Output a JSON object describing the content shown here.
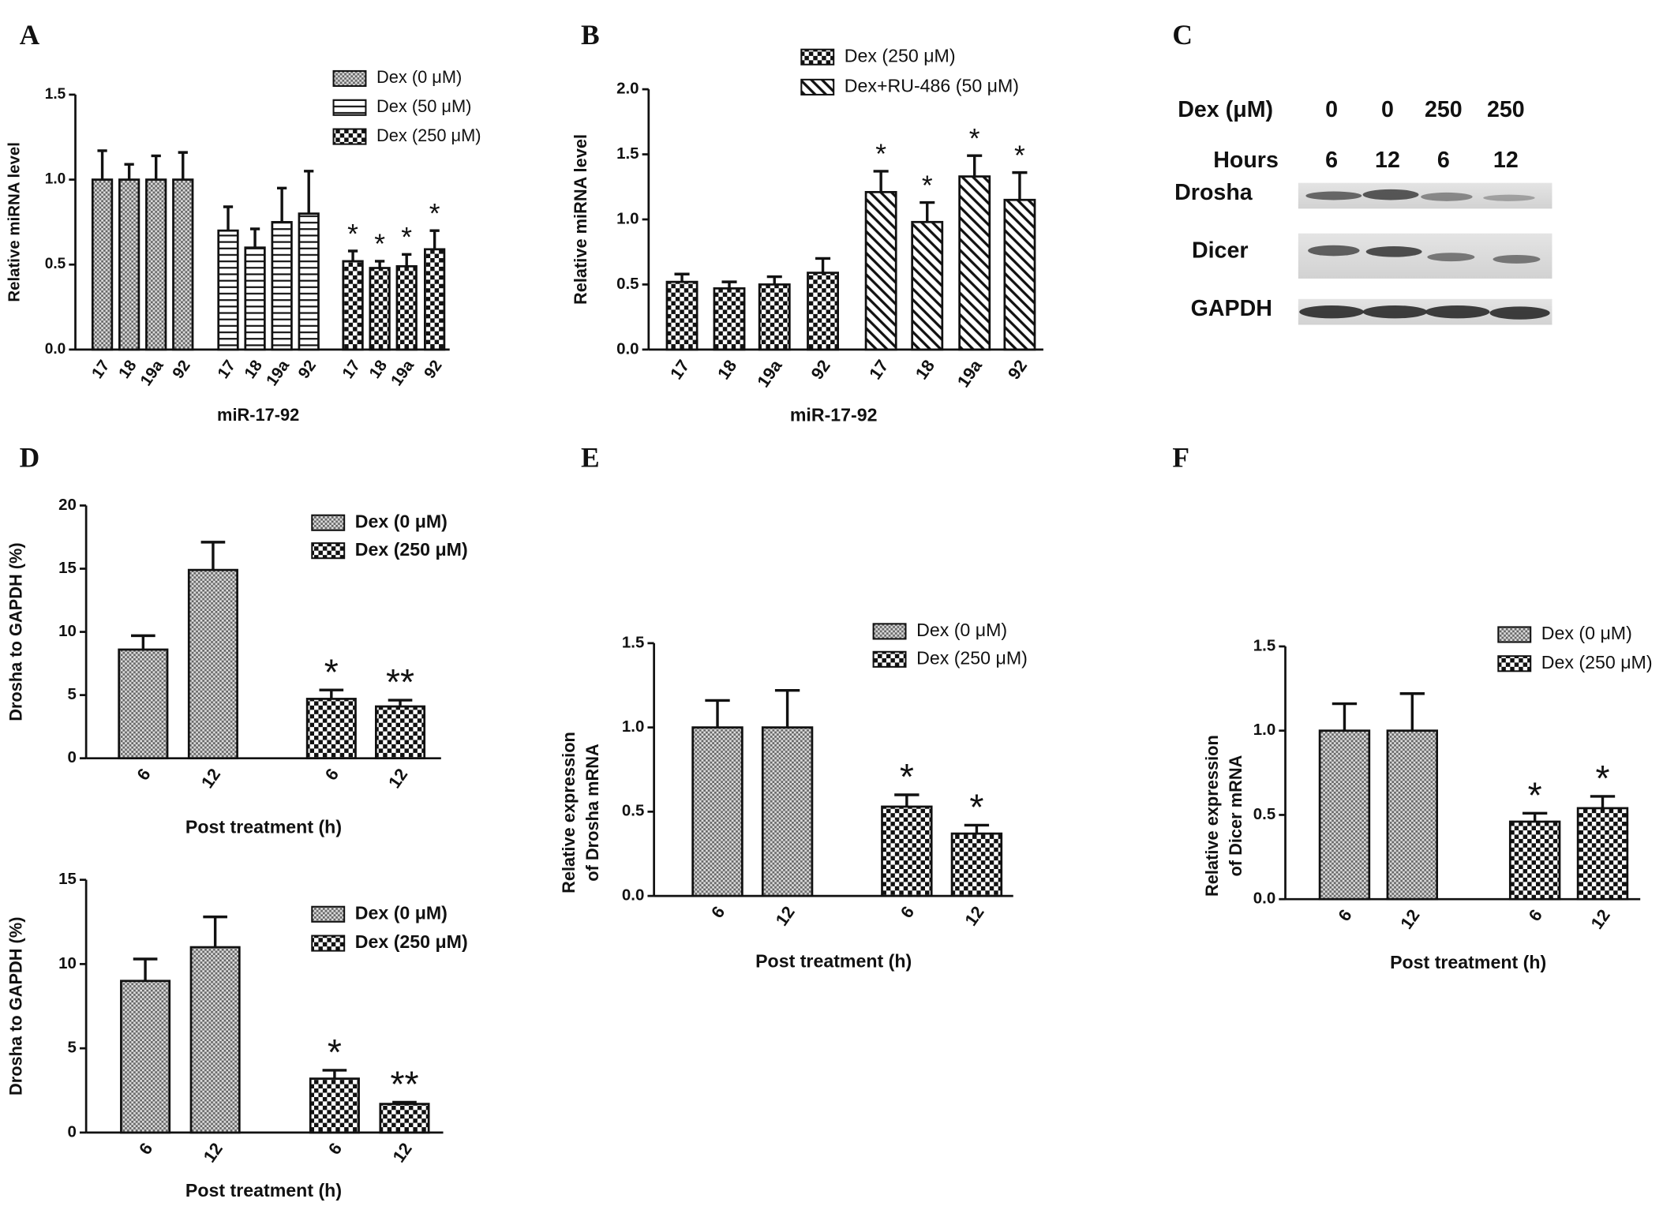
{
  "panel_labels": [
    "A",
    "B",
    "C",
    "D",
    "E",
    "F"
  ],
  "blot": {
    "dose_header": "Dex (μM)",
    "doses": [
      "0",
      "0",
      "250",
      "250"
    ],
    "time_header": "Hours",
    "times": [
      "6",
      "12",
      "6",
      "12"
    ],
    "bands": [
      "Drosha",
      "Dicer",
      "GAPDH"
    ]
  },
  "chart_data": [
    {
      "type": "bar",
      "xlabel": "miR-17-92",
      "ylabel": "Relative miRNA level",
      "categories": [
        "17",
        "18",
        "19a",
        "92"
      ],
      "ylim": [
        0,
        1.5
      ],
      "yticks": [
        {
          "value": 0,
          "label": "0.0"
        },
        {
          "value": 0.5,
          "label": "0.5"
        },
        {
          "value": 1.0,
          "label": "1.0"
        },
        {
          "value": 1.5,
          "label": "1.5"
        }
      ],
      "series": [
        {
          "name": "Dex (0 μM)",
          "pattern": "fine",
          "values": [
            1.0,
            1.0,
            1.0,
            1.0
          ],
          "errors": [
            0.17,
            0.09,
            0.14,
            0.16
          ]
        },
        {
          "name": "Dex (50 μM)",
          "pattern": "hlines",
          "values": [
            0.7,
            0.6,
            0.75,
            0.8
          ],
          "errors": [
            0.14,
            0.11,
            0.2,
            0.25
          ]
        },
        {
          "name": "Dex (250 μM)",
          "pattern": "checker",
          "values": [
            0.52,
            0.48,
            0.49,
            0.59
          ],
          "errors": [
            0.06,
            0.04,
            0.07,
            0.11
          ],
          "significance": [
            "*",
            "*",
            "*",
            "*"
          ]
        }
      ]
    },
    {
      "type": "bar",
      "xlabel": "miR-17-92",
      "ylabel": "Relative miRNA level",
      "categories": [
        "17",
        "18",
        "19a",
        "92"
      ],
      "ylim": [
        0,
        2.0
      ],
      "yticks": [
        {
          "value": 0,
          "label": "0.0"
        },
        {
          "value": 0.5,
          "label": "0.5"
        },
        {
          "value": 1.0,
          "label": "1.0"
        },
        {
          "value": 1.5,
          "label": "1.5"
        },
        {
          "value": 2.0,
          "label": "2.0"
        }
      ],
      "series": [
        {
          "name": "Dex (250 μM)",
          "pattern": "checker",
          "values": [
            0.52,
            0.47,
            0.5,
            0.59
          ],
          "errors": [
            0.06,
            0.05,
            0.06,
            0.11
          ]
        },
        {
          "name": "Dex+RU-486 (50 μM)",
          "pattern": "diag",
          "values": [
            1.21,
            0.98,
            1.33,
            1.15
          ],
          "errors": [
            0.16,
            0.15,
            0.16,
            0.21
          ],
          "significance": [
            "*",
            "*",
            "*",
            "*"
          ]
        }
      ]
    },
    {
      "type": "bar",
      "xlabel": "Post treatment (h)",
      "ylabel": "Drosha to GAPDH (%)",
      "categories": [
        "6",
        "12"
      ],
      "ylim": [
        0,
        20
      ],
      "yticks": [
        0,
        5,
        10,
        15,
        20
      ],
      "series": [
        {
          "name": "Dex (0 μM)",
          "pattern": "fine",
          "values": [
            8.6,
            14.9
          ],
          "errors": [
            1.1,
            2.2
          ]
        },
        {
          "name": "Dex (250 μM)",
          "pattern": "checker",
          "values": [
            4.7,
            4.1
          ],
          "errors": [
            0.7,
            0.5
          ],
          "significance": [
            "*",
            "**"
          ]
        }
      ]
    },
    {
      "type": "bar",
      "xlabel": "Post treatment (h)",
      "ylabel": "Drosha to GAPDH (%)",
      "categories": [
        "6",
        "12"
      ],
      "ylim": [
        0,
        15
      ],
      "yticks": [
        0,
        5,
        10,
        15
      ],
      "series": [
        {
          "name": "Dex (0 μM)",
          "pattern": "fine",
          "values": [
            9.0,
            11.0
          ],
          "errors": [
            1.3,
            1.8
          ]
        },
        {
          "name": "Dex (250 μM)",
          "pattern": "checker",
          "values": [
            3.2,
            1.7
          ],
          "errors": [
            0.5,
            0.1
          ],
          "significance": [
            "*",
            "**"
          ]
        }
      ]
    },
    {
      "type": "bar",
      "xlabel": "Post treatment (h)",
      "ylabel": [
        "Relative expression",
        "of Drosha mRNA"
      ],
      "categories": [
        "6",
        "12"
      ],
      "ylim": [
        0,
        1.5
      ],
      "yticks": [
        {
          "value": 0,
          "label": "0.0"
        },
        {
          "value": 0.5,
          "label": "0.5"
        },
        {
          "value": 1.0,
          "label": "1.0"
        },
        {
          "value": 1.5,
          "label": "1.5"
        }
      ],
      "series": [
        {
          "name": "Dex (0 μM)",
          "pattern": "fine",
          "values": [
            1.0,
            1.0
          ],
          "errors": [
            0.16,
            0.22
          ]
        },
        {
          "name": "Dex (250 μM)",
          "pattern": "checker",
          "values": [
            0.53,
            0.37
          ],
          "errors": [
            0.07,
            0.05
          ],
          "significance": [
            "*",
            "*"
          ]
        }
      ]
    },
    {
      "type": "bar",
      "xlabel": "Post treatment (h)",
      "ylabel": [
        "Relative expression",
        "of Dicer mRNA"
      ],
      "categories": [
        "6",
        "12"
      ],
      "ylim": [
        0,
        1.5
      ],
      "yticks": [
        {
          "value": 0,
          "label": "0.0"
        },
        {
          "value": 0.5,
          "label": "0.5"
        },
        {
          "value": 1.0,
          "label": "1.0"
        },
        {
          "value": 1.5,
          "label": "1.5"
        }
      ],
      "series": [
        {
          "name": "Dex (0 μM)",
          "pattern": "fine",
          "values": [
            1.0,
            1.0
          ],
          "errors": [
            0.16,
            0.22
          ]
        },
        {
          "name": "Dex (250 μM)",
          "pattern": "checker",
          "values": [
            0.46,
            0.54
          ],
          "errors": [
            0.05,
            0.07
          ],
          "significance": [
            "*",
            "*"
          ]
        }
      ]
    }
  ]
}
